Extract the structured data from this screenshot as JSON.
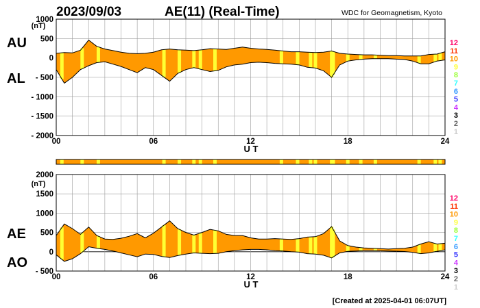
{
  "header": {
    "date": "2023/09/03",
    "title": "AE(11) (Real-Time)",
    "source": "WDC for Geomagnetism, Kyoto"
  },
  "footer": {
    "created": "[Created at 2025-04-01 06:07UT]"
  },
  "colors": {
    "fill": "#ff9900",
    "station_band": "#ffff33",
    "trace": "#000000",
    "grid": "#9a9a9a"
  },
  "station_scale": {
    "labels": [
      "12",
      "11",
      "10",
      "9",
      "8",
      "7",
      "6",
      "5",
      "4",
      "3",
      "2",
      "1"
    ],
    "colors": [
      "#ff0066",
      "#ff3300",
      "#ff9900",
      "#ffff33",
      "#99ff33",
      "#33ffff",
      "#3399ff",
      "#3333ff",
      "#cc33ff",
      "#000000",
      "#666666",
      "#cccccc"
    ]
  },
  "chart_data": [
    {
      "type": "area",
      "panel": "top",
      "series": [
        {
          "name": "AU"
        },
        {
          "name": "AL"
        }
      ],
      "unit_label": "(nT)",
      "xlabel": "U T",
      "xlim": [
        0,
        24
      ],
      "xticks": [
        "00",
        "06",
        "12",
        "18",
        "24"
      ],
      "ylim": [
        -2000,
        1000
      ],
      "yticks": [
        "1000",
        "500",
        "0",
        "- 500",
        "- 1000",
        "- 1500",
        "- 2000"
      ],
      "grid": true,
      "hours": [
        0,
        0.5,
        1,
        1.5,
        2,
        2.5,
        3,
        3.5,
        4,
        4.5,
        5,
        5.5,
        6,
        6.5,
        7,
        7.5,
        8,
        8.5,
        9,
        9.5,
        10,
        10.5,
        11,
        11.5,
        12,
        12.5,
        13,
        13.5,
        14,
        14.5,
        15,
        15.5,
        16,
        16.5,
        17,
        17.5,
        18,
        18.5,
        19,
        19.5,
        20,
        20.5,
        21,
        21.5,
        22,
        22.5,
        23,
        23.5,
        24
      ],
      "au": [
        120,
        140,
        130,
        200,
        460,
        300,
        230,
        190,
        150,
        120,
        110,
        120,
        150,
        210,
        230,
        210,
        200,
        190,
        210,
        240,
        230,
        220,
        250,
        280,
        250,
        230,
        220,
        200,
        180,
        160,
        160,
        150,
        140,
        150,
        180,
        120,
        100,
        90,
        80,
        80,
        70,
        60,
        60,
        50,
        50,
        50,
        90,
        100,
        160
      ],
      "al": [
        -300,
        -650,
        -500,
        -300,
        -200,
        -120,
        -100,
        -160,
        -220,
        -300,
        -380,
        -250,
        -300,
        -450,
        -600,
        -400,
        -300,
        -250,
        -300,
        -350,
        -320,
        -230,
        -180,
        -160,
        -120,
        -110,
        -120,
        -140,
        -150,
        -160,
        -180,
        -240,
        -260,
        -330,
        -500,
        -180,
        -80,
        -50,
        -30,
        -20,
        -20,
        -20,
        -30,
        -40,
        -80,
        -150,
        -150,
        -80,
        -50
      ],
      "stations": [
        0.35,
        1.6,
        2.6,
        6.65,
        7.6,
        8.5,
        8.9,
        9.8,
        13.9,
        14.9,
        15.7,
        16.0,
        17.0,
        17.1,
        18.0,
        18.8,
        19.7,
        22.4,
        23.4,
        23.7
      ]
    },
    {
      "type": "area",
      "panel": "bottom",
      "series": [
        {
          "name": "AE"
        },
        {
          "name": "AO"
        }
      ],
      "unit_label": "(nT)",
      "xlabel": "U T",
      "xlim": [
        0,
        24
      ],
      "xticks": [
        "00",
        "06",
        "12",
        "18",
        "24"
      ],
      "ylim": [
        -500,
        2000
      ],
      "yticks": [
        "2000",
        "1500",
        "1000",
        "500",
        "0",
        "- 500"
      ],
      "grid": true,
      "hours": [
        0,
        0.5,
        1,
        1.5,
        2,
        2.5,
        3,
        3.5,
        4,
        4.5,
        5,
        5.5,
        6,
        6.5,
        7,
        7.5,
        8,
        8.5,
        9,
        9.5,
        10,
        10.5,
        11,
        11.5,
        12,
        12.5,
        13,
        13.5,
        14,
        14.5,
        15,
        15.5,
        16,
        16.5,
        17,
        17.5,
        18,
        18.5,
        19,
        19.5,
        20,
        20.5,
        21,
        21.5,
        22,
        22.5,
        23,
        23.5,
        24
      ],
      "ae": [
        420,
        720,
        600,
        450,
        640,
        420,
        330,
        320,
        350,
        400,
        470,
        360,
        480,
        640,
        800,
        600,
        500,
        430,
        500,
        580,
        540,
        450,
        420,
        420,
        360,
        330,
        330,
        340,
        330,
        320,
        340,
        380,
        390,
        470,
        650,
        280,
        160,
        120,
        100,
        90,
        80,
        70,
        80,
        90,
        120,
        200,
        260,
        200,
        220
      ],
      "ao": [
        -80,
        -250,
        -180,
        -50,
        130,
        90,
        60,
        20,
        -30,
        -80,
        -130,
        -60,
        -70,
        -120,
        -150,
        -100,
        -60,
        -30,
        -40,
        -50,
        -40,
        0,
        30,
        50,
        60,
        60,
        50,
        30,
        20,
        0,
        -10,
        -50,
        -60,
        -90,
        -160,
        -30,
        10,
        20,
        30,
        30,
        25,
        20,
        15,
        5,
        -15,
        -50,
        -30,
        10,
        50
      ],
      "stations": [
        0.35,
        1.6,
        2.6,
        6.65,
        7.6,
        8.5,
        8.9,
        9.8,
        13.9,
        14.9,
        15.7,
        16.0,
        17.0,
        17.1,
        18.0,
        18.8,
        19.7,
        22.4,
        23.4,
        23.7
      ]
    }
  ]
}
